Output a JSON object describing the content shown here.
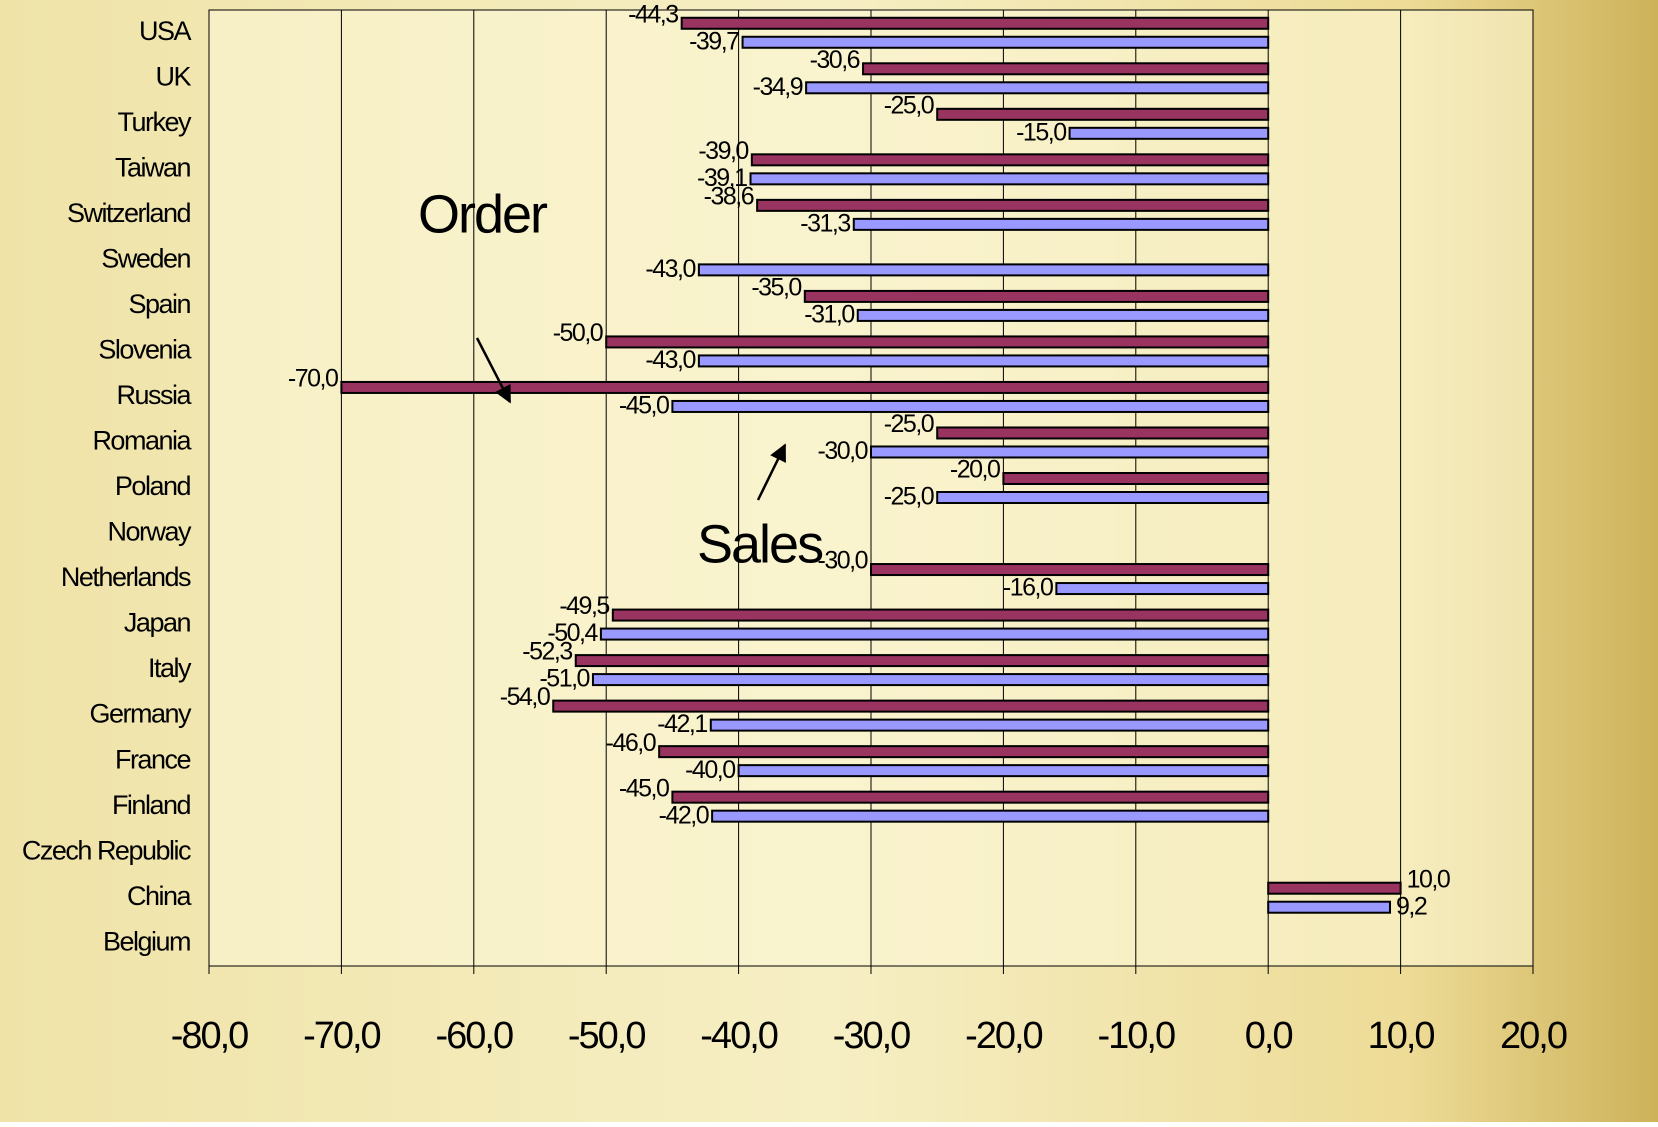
{
  "chart_data": {
    "type": "bar",
    "orientation": "horizontal",
    "categories": [
      "USA",
      "UK",
      "Turkey",
      "Taiwan",
      "Switzerland",
      "Sweden",
      "Spain",
      "Slovenia",
      "Russia",
      "Romania",
      "Poland",
      "Norway",
      "Netherlands",
      "Japan",
      "Italy",
      "Germany",
      "France",
      "Finland",
      "Czech Republic",
      "China",
      "Belgium"
    ],
    "series": [
      {
        "name": "Order",
        "color": "#99335f",
        "values": [
          -44.3,
          -30.6,
          -25.0,
          -39.0,
          -38.6,
          null,
          -35.0,
          -50.0,
          -70.0,
          -25.0,
          -20.0,
          null,
          -30.0,
          -49.5,
          -52.3,
          -54.0,
          -46.0,
          -45.0,
          null,
          10.0,
          null
        ],
        "value_labels": [
          "-44,3",
          "-30,6",
          "-25,0",
          "-39,0",
          "-38,6",
          null,
          "-35,0",
          "-50,0",
          "-70,0",
          "-25,0",
          "-20,0",
          null,
          "-30,0",
          "-49,5",
          "-52,3",
          "-54,0",
          "-46,0",
          "-45,0",
          null,
          "10,0",
          null
        ]
      },
      {
        "name": "Sales",
        "color": "#9999ff",
        "values": [
          -39.7,
          -34.9,
          -15.0,
          -39.1,
          -31.3,
          -43.0,
          -31.0,
          -43.0,
          -45.0,
          -30.0,
          -25.0,
          null,
          -16.0,
          -50.4,
          -51.0,
          -42.1,
          -40.0,
          -42.0,
          null,
          9.2,
          null
        ],
        "value_labels": [
          "-39,7",
          "-34,9",
          "-15,0",
          "-39,1",
          "-31,3",
          "-43,0",
          "-31,0",
          "-43,0",
          "-45,0",
          "-30,0",
          "-25,0",
          null,
          "-16,0",
          "-50,4",
          "-51,0",
          "-42,1",
          "-40,0",
          "-42,0",
          null,
          "9,2",
          null
        ]
      }
    ],
    "xlim": [
      -80,
      20
    ],
    "xticks": [
      {
        "value": -80,
        "label": "-80,0"
      },
      {
        "value": -70,
        "label": "-70,0"
      },
      {
        "value": -60,
        "label": "-60,0"
      },
      {
        "value": -50,
        "label": "-50,0"
      },
      {
        "value": -40,
        "label": "-40,0"
      },
      {
        "value": -30,
        "label": "-30,0"
      },
      {
        "value": -20,
        "label": "-20,0"
      },
      {
        "value": -10,
        "label": "-10,0"
      },
      {
        "value": 0,
        "label": "0,0"
      },
      {
        "value": 10,
        "label": "10,0"
      },
      {
        "value": 20,
        "label": "20,0"
      }
    ],
    "grid": true
  }
}
